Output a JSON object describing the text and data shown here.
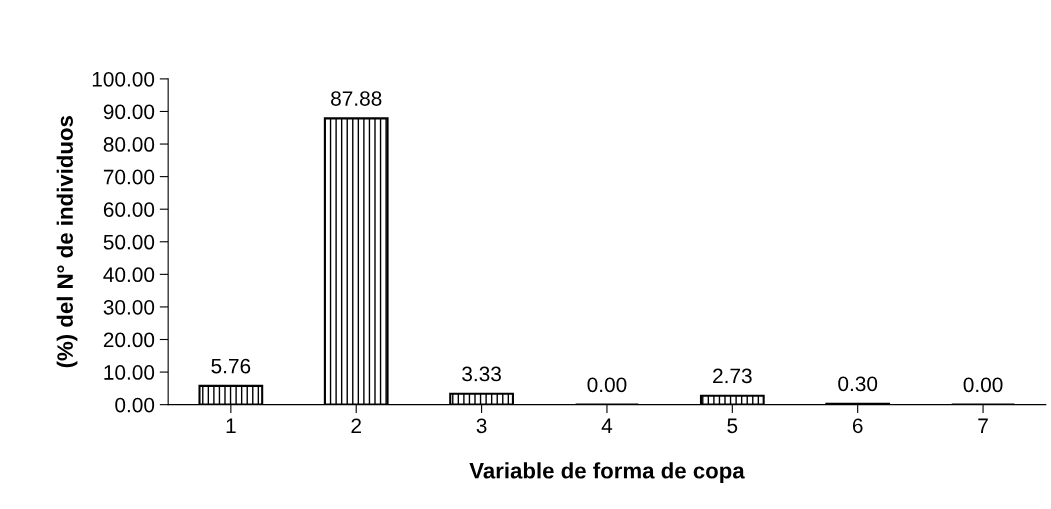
{
  "chart_data": {
    "type": "bar",
    "xlabel": "Variable de forma de copa",
    "ylabel": "(%) del N° de individuos",
    "categories": [
      "1",
      "2",
      "3",
      "4",
      "5",
      "6",
      "7"
    ],
    "values": [
      5.76,
      87.88,
      3.33,
      0.0,
      2.73,
      0.3,
      0.0
    ],
    "value_labels": [
      "5.76",
      "87.88",
      "3.33",
      "0.00",
      "2.73",
      "0.30",
      "0.00"
    ],
    "color": "#000000",
    "ylim": [
      0,
      100
    ],
    "yticks": [
      {
        "value": 0,
        "label": "0.00"
      },
      {
        "value": 10,
        "label": "10.00"
      },
      {
        "value": 20,
        "label": "20.00"
      },
      {
        "value": 30,
        "label": "30.00"
      },
      {
        "value": 40,
        "label": "40.00"
      },
      {
        "value": 50,
        "label": "50.00"
      },
      {
        "value": 60,
        "label": "60.00"
      },
      {
        "value": 70,
        "label": "70.00"
      },
      {
        "value": 80,
        "label": "80.00"
      },
      {
        "value": 90,
        "label": "90.00"
      },
      {
        "value": 100,
        "label": "100.00"
      }
    ],
    "grid": false,
    "legend": false
  }
}
